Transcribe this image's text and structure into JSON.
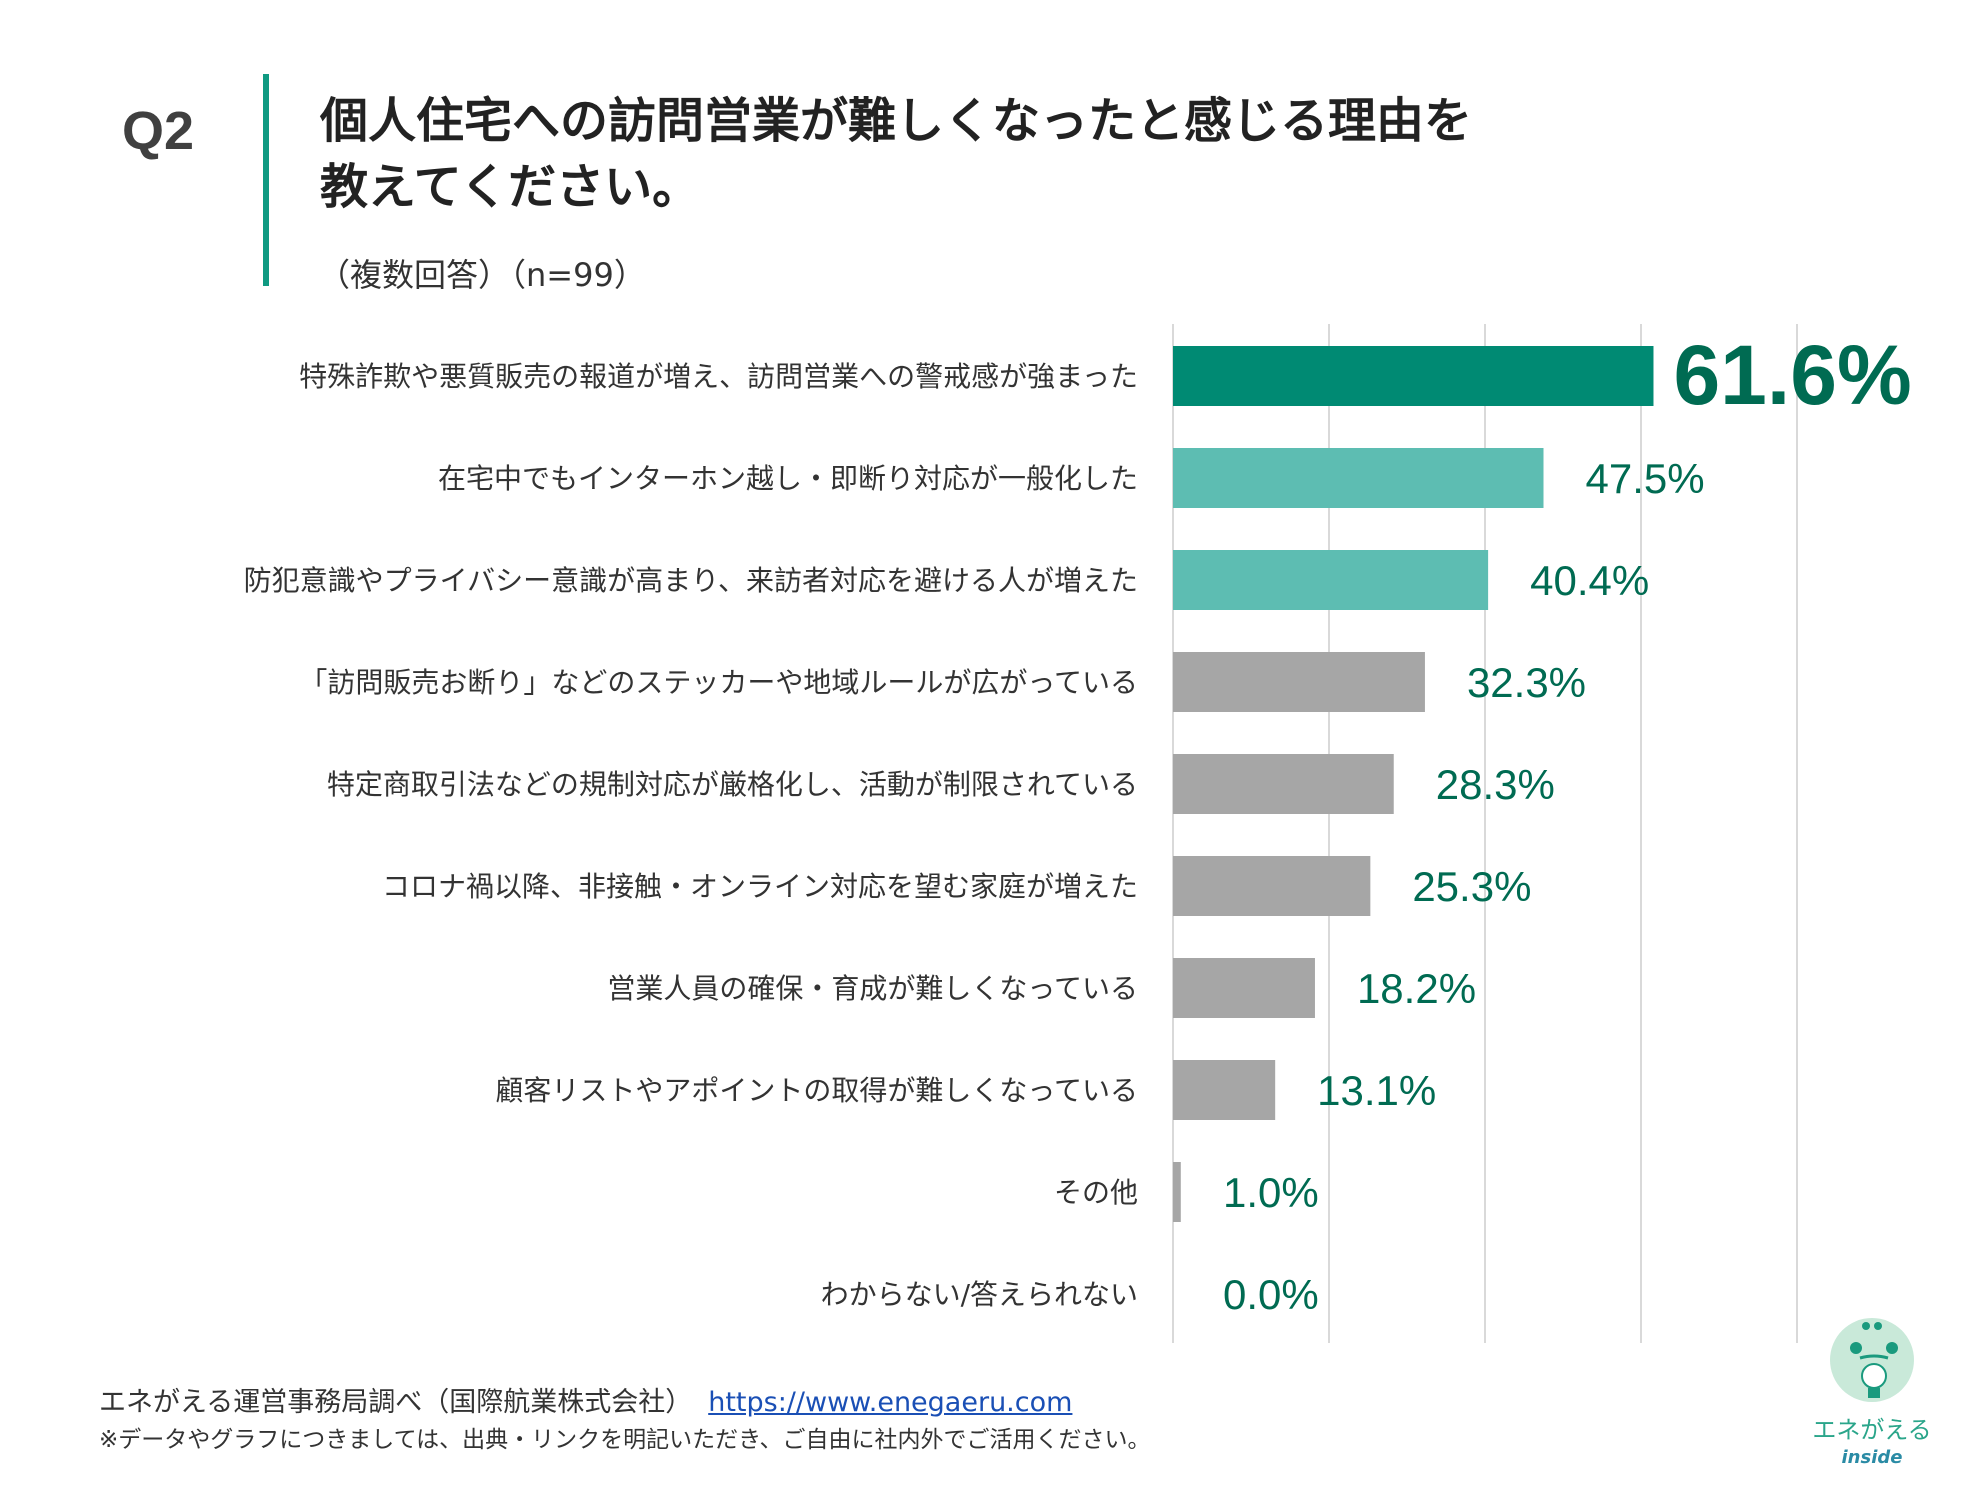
{
  "header": {
    "q_label": "Q2",
    "title_line1": "個人住宅への訪問営業が難しくなったと感じる理由を",
    "title_line2": "教えてください。",
    "subtitle": "（複数回答）（n=99）"
  },
  "chart_data": {
    "type": "bar",
    "orientation": "horizontal",
    "categories": [
      "特殊詐欺や悪質販売の報道が増え、訪問営業への警戒感が強まった",
      "在宅中でもインターホン越し・即断り対応が一般化した",
      "防犯意識やプライバシー意識が高まり、来訪者対応を避ける人が増えた",
      "「訪問販売お断り」などのステッカーや地域ルールが広がっている",
      "特定商取引法などの規制対応が厳格化し、活動が制限されている",
      "コロナ禍以降、非接触・オンライン対応を望む家庭が増えた",
      "営業人員の確保・育成が難しくなっている",
      "顧客リストやアポイントの取得が難しくなっている",
      "その他",
      "わからない/答えられない"
    ],
    "values": [
      61.6,
      47.5,
      40.4,
      32.3,
      28.3,
      25.3,
      18.2,
      13.1,
      1.0,
      0.0
    ],
    "value_labels": [
      "61.6%",
      "47.5%",
      "40.4%",
      "32.3%",
      "28.3%",
      "25.3%",
      "18.2%",
      "13.1%",
      "1.0%",
      "0.0%"
    ],
    "xlim": [
      0,
      80
    ],
    "grid": true,
    "colors": {
      "top": "#008a73",
      "highlight": "#5dbdb2",
      "other": "#a6a6a6",
      "value_text": "#006b52",
      "accent": "#109a82"
    }
  },
  "footer": {
    "source": "エネがえる運営事務局調べ（国際航業株式会社）",
    "url": "https://www.enegaeru.com",
    "note": "※データやグラフにつきましては、出典・リンクを明記いただき、ご自由に社内外でご活用ください。"
  },
  "logo": {
    "text": "エネがえる",
    "sub": "inside"
  }
}
